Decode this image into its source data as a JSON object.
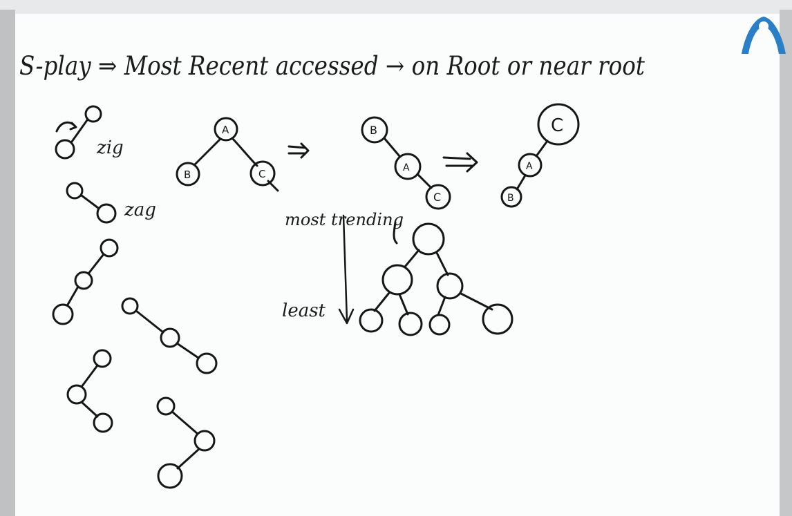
{
  "whiteboard": {
    "heading": "S-play ⇒ Most Recent accessed → on Root or near root",
    "labels": {
      "zig": "zig",
      "zag": "zag",
      "most_trending": "most trending",
      "least": "least"
    },
    "nodes": {
      "a": "A",
      "b": "B",
      "c": "C"
    }
  },
  "colors": {
    "ink": "#161616",
    "board": "#fbfcfc",
    "frame": "#c9cacb",
    "logo": "#2a7fc6"
  }
}
